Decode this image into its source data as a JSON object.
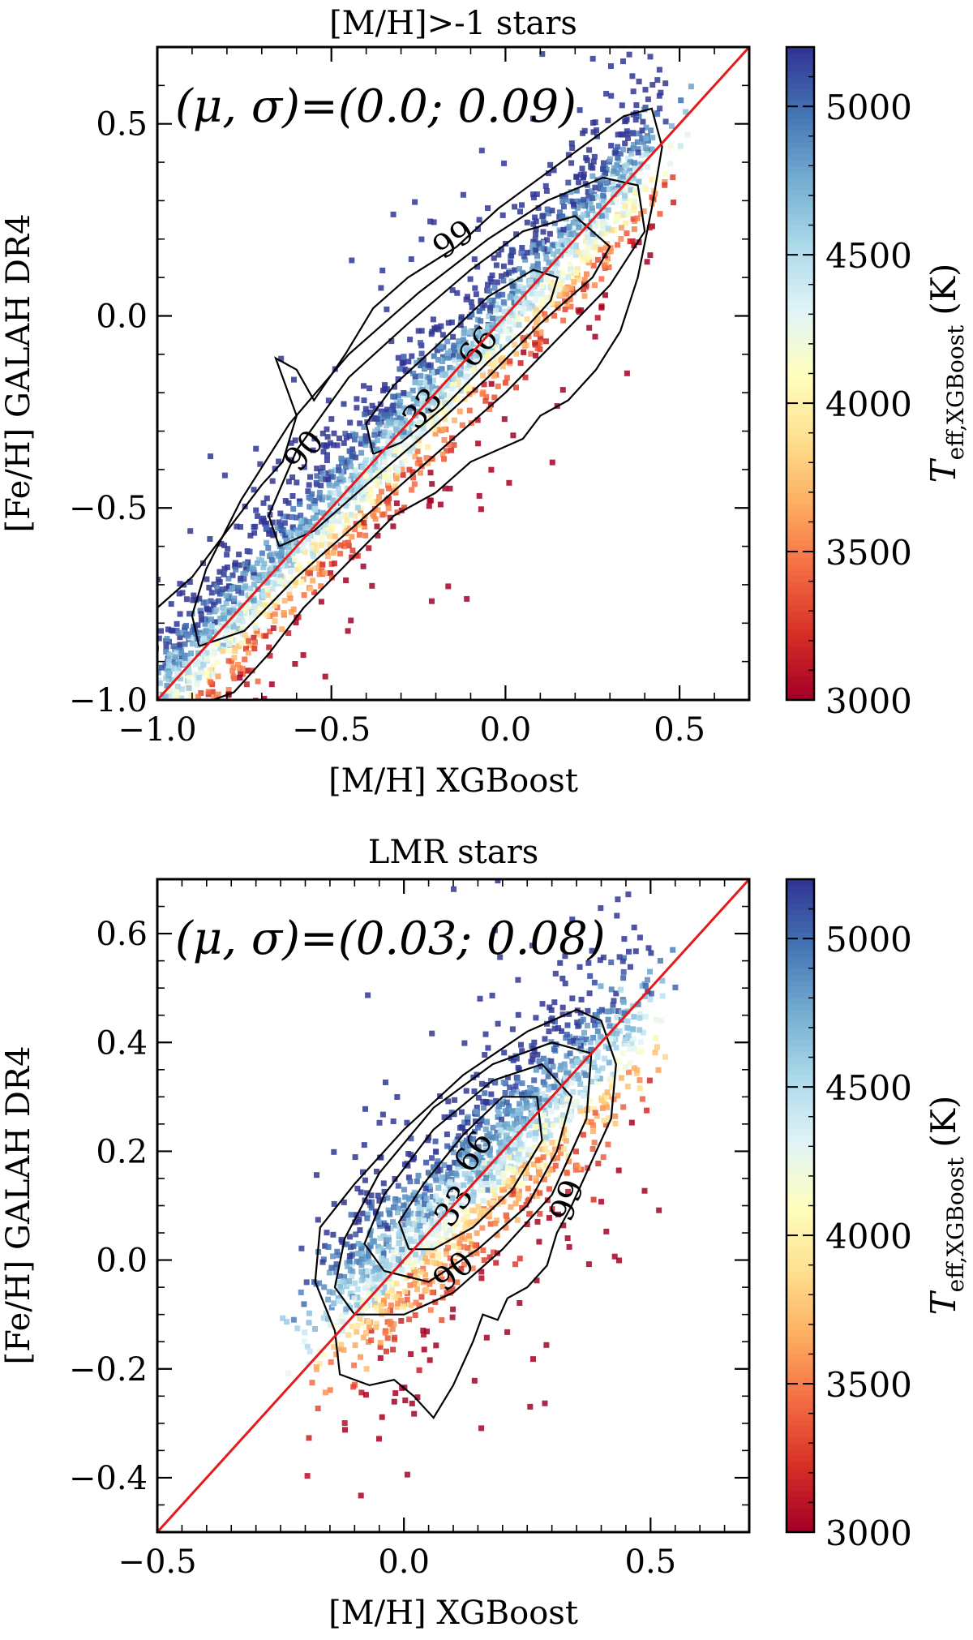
{
  "colorbar": {
    "label": "T_eff,XGBoost (K)",
    "label_main": "T",
    "label_sub": "eff,XGBoost",
    "label_unit": "(K)",
    "range": [
      3000,
      5200
    ],
    "ticks": [
      3000,
      3500,
      4000,
      4500,
      5000
    ],
    "tick_labels": [
      "3000",
      "3500",
      "4000",
      "4500",
      "5000"
    ],
    "colormap": [
      "#a50026",
      "#d73027",
      "#f46d43",
      "#fdae61",
      "#fee090",
      "#ffffbf",
      "#e0f3f8",
      "#abd9e9",
      "#74add1",
      "#4575b4",
      "#313695"
    ]
  },
  "chart_data": [
    {
      "type": "scatter",
      "title": "[M/H]>-1 stars",
      "annotation": "(μ, σ)=(0.0; 0.09)",
      "xlabel": "[M/H] XGBoost",
      "ylabel": "[Fe/H] GALAH DR4",
      "xlim": [
        -1.0,
        0.7
      ],
      "ylim": [
        -1.0,
        0.7
      ],
      "xticks": [
        -1.0,
        -0.5,
        0.0,
        0.5
      ],
      "xtick_labels": [
        "−1.0",
        "−0.5",
        "0.0",
        "0.5"
      ],
      "yticks": [
        -1.0,
        -0.5,
        0.0,
        0.5
      ],
      "ytick_labels": [
        "−1.0",
        "−0.5",
        "0.0",
        "0.5"
      ],
      "identity_line": {
        "color": "#e41a1c",
        "from": [
          -1.0,
          -1.0
        ],
        "to": [
          0.7,
          0.7
        ]
      },
      "density": {
        "slope": 1.0,
        "intercept": 0.0,
        "center": [
          -0.3,
          -0.3
        ],
        "half_length": 0.72,
        "spread": 0.09,
        "n_points": 2600,
        "cool_offset": -0.2
      },
      "contour_levels": [
        33,
        66,
        90,
        99
      ],
      "contours": [
        {
          "level": "33",
          "color": "#000000",
          "points": [
            [
              -0.38,
              -0.36
            ],
            [
              -0.3,
              -0.33
            ],
            [
              -0.18,
              -0.24
            ],
            [
              -0.05,
              -0.12
            ],
            [
              0.05,
              -0.04
            ],
            [
              0.13,
              0.04
            ],
            [
              0.15,
              0.1
            ],
            [
              0.08,
              0.12
            ],
            [
              -0.05,
              0.05
            ],
            [
              -0.2,
              -0.08
            ],
            [
              -0.32,
              -0.18
            ],
            [
              -0.4,
              -0.28
            ],
            [
              -0.38,
              -0.36
            ]
          ],
          "label_pos": [
            -0.24,
            -0.24
          ],
          "label_rot": -50
        },
        {
          "level": "66",
          "color": "#000000",
          "points": [
            [
              -0.65,
              -0.6
            ],
            [
              -0.55,
              -0.56
            ],
            [
              -0.4,
              -0.44
            ],
            [
              -0.22,
              -0.3
            ],
            [
              -0.05,
              -0.16
            ],
            [
              0.1,
              -0.02
            ],
            [
              0.25,
              0.1
            ],
            [
              0.3,
              0.18
            ],
            [
              0.2,
              0.26
            ],
            [
              0.05,
              0.22
            ],
            [
              -0.1,
              0.12
            ],
            [
              -0.28,
              -0.02
            ],
            [
              -0.45,
              -0.16
            ],
            [
              -0.6,
              -0.35
            ],
            [
              -0.68,
              -0.52
            ],
            [
              -0.65,
              -0.6
            ]
          ],
          "label_pos": [
            -0.08,
            -0.08
          ],
          "label_rot": -50
        },
        {
          "level": "90",
          "color": "#000000",
          "points": [
            [
              -0.88,
              -0.86
            ],
            [
              -0.75,
              -0.82
            ],
            [
              -0.6,
              -0.68
            ],
            [
              -0.4,
              -0.52
            ],
            [
              -0.2,
              -0.36
            ],
            [
              0.0,
              -0.2
            ],
            [
              0.15,
              -0.06
            ],
            [
              0.3,
              0.08
            ],
            [
              0.4,
              0.22
            ],
            [
              0.38,
              0.34
            ],
            [
              0.28,
              0.36
            ],
            [
              0.12,
              0.3
            ],
            [
              -0.05,
              0.2
            ],
            [
              -0.25,
              0.06
            ],
            [
              -0.45,
              -0.1
            ],
            [
              -0.62,
              -0.28
            ],
            [
              -0.76,
              -0.48
            ],
            [
              -0.86,
              -0.66
            ],
            [
              -0.9,
              -0.78
            ],
            [
              -0.88,
              -0.86
            ]
          ],
          "label_pos": [
            -0.58,
            -0.35
          ],
          "label_rot": -50
        },
        {
          "level": "99",
          "color": "#000000",
          "points": [
            [
              -1.0,
              -0.76
            ],
            [
              -0.9,
              -0.68
            ],
            [
              -0.8,
              -0.56
            ],
            [
              -0.7,
              -0.44
            ],
            [
              -0.64,
              -0.38
            ],
            [
              -0.6,
              -0.26
            ],
            [
              -0.66,
              -0.11
            ],
            [
              -0.6,
              -0.14
            ],
            [
              -0.55,
              -0.22
            ],
            [
              -0.46,
              -0.1
            ],
            [
              -0.38,
              0.02
            ],
            [
              -0.28,
              0.1
            ],
            [
              -0.14,
              0.18
            ],
            [
              -0.02,
              0.28
            ],
            [
              0.1,
              0.36
            ],
            [
              0.22,
              0.44
            ],
            [
              0.34,
              0.52
            ],
            [
              0.42,
              0.54
            ],
            [
              0.45,
              0.44
            ],
            [
              0.42,
              0.28
            ],
            [
              0.38,
              0.1
            ],
            [
              0.33,
              -0.04
            ],
            [
              0.26,
              -0.14
            ],
            [
              0.18,
              -0.22
            ],
            [
              0.1,
              -0.26
            ],
            [
              0.05,
              -0.32
            ],
            [
              -0.1,
              -0.38
            ],
            [
              -0.2,
              -0.46
            ],
            [
              -0.32,
              -0.52
            ],
            [
              -0.45,
              -0.64
            ],
            [
              -0.58,
              -0.76
            ],
            [
              -0.68,
              -0.88
            ],
            [
              -0.78,
              -0.98
            ],
            [
              -0.84,
              -1.0
            ]
          ],
          "label_pos": [
            -0.15,
            0.2
          ],
          "label_rot": -35
        }
      ]
    },
    {
      "type": "scatter",
      "title": "LMR stars",
      "annotation": "(μ, σ)=(0.03; 0.08)",
      "xlabel": "[M/H] XGBoost",
      "ylabel": "[Fe/H] GALAH DR4",
      "xlim": [
        -0.5,
        0.7
      ],
      "ylim": [
        -0.5,
        0.7
      ],
      "xticks": [
        -0.5,
        0.0,
        0.5
      ],
      "xtick_labels": [
        "−0.5",
        "0.0",
        "0.5"
      ],
      "yticks": [
        -0.4,
        -0.2,
        0.0,
        0.2,
        0.4,
        0.6
      ],
      "ytick_labels": [
        "−0.4",
        "−0.2",
        "0.0",
        "0.2",
        "0.4",
        "0.6"
      ],
      "identity_line": {
        "color": "#e41a1c",
        "from": [
          -0.5,
          -0.5
        ],
        "to": [
          0.7,
          0.7
        ]
      },
      "density": {
        "slope": 0.85,
        "intercept": 0.03,
        "center": [
          0.16,
          0.16
        ],
        "half_length": 0.3,
        "spread": 0.08,
        "n_points": 1700,
        "cool_offset": -0.12
      },
      "contour_levels": [
        33,
        66,
        90,
        99
      ],
      "contours": [
        {
          "level": "33",
          "color": "#000000",
          "points": [
            [
              0.01,
              0.02
            ],
            [
              0.06,
              0.02
            ],
            [
              0.14,
              0.06
            ],
            [
              0.22,
              0.13
            ],
            [
              0.28,
              0.22
            ],
            [
              0.27,
              0.3
            ],
            [
              0.2,
              0.3
            ],
            [
              0.12,
              0.23
            ],
            [
              0.04,
              0.14
            ],
            [
              -0.01,
              0.07
            ],
            [
              0.01,
              0.02
            ]
          ],
          "label_pos": [
            0.1,
            0.1
          ],
          "label_rot": -55
        },
        {
          "level": "66",
          "color": "#000000",
          "points": [
            [
              -0.04,
              -0.02
            ],
            [
              0.05,
              -0.04
            ],
            [
              0.15,
              0.02
            ],
            [
              0.25,
              0.1
            ],
            [
              0.31,
              0.2
            ],
            [
              0.34,
              0.3
            ],
            [
              0.28,
              0.36
            ],
            [
              0.18,
              0.33
            ],
            [
              0.06,
              0.24
            ],
            [
              -0.04,
              0.12
            ],
            [
              -0.08,
              0.03
            ],
            [
              -0.04,
              -0.02
            ]
          ],
          "label_pos": [
            0.14,
            0.2
          ],
          "label_rot": -55
        },
        {
          "level": "90",
          "color": "#000000",
          "points": [
            [
              -0.1,
              -0.1
            ],
            [
              0.0,
              -0.1
            ],
            [
              0.1,
              -0.06
            ],
            [
              0.2,
              0.02
            ],
            [
              0.3,
              0.12
            ],
            [
              0.37,
              0.26
            ],
            [
              0.38,
              0.38
            ],
            [
              0.3,
              0.4
            ],
            [
              0.18,
              0.36
            ],
            [
              0.06,
              0.28
            ],
            [
              -0.05,
              0.16
            ],
            [
              -0.12,
              0.04
            ],
            [
              -0.14,
              -0.05
            ],
            [
              -0.1,
              -0.1
            ]
          ],
          "label_pos": [
            0.1,
            -0.02
          ],
          "label_rot": -40
        },
        {
          "level": "99",
          "color": "#000000",
          "points": [
            [
              -0.14,
              -0.13
            ],
            [
              -0.13,
              -0.21
            ],
            [
              -0.07,
              -0.23
            ],
            [
              -0.02,
              -0.22
            ],
            [
              0.02,
              -0.25
            ],
            [
              0.06,
              -0.29
            ],
            [
              0.1,
              -0.23
            ],
            [
              0.14,
              -0.15
            ],
            [
              0.16,
              -0.1
            ],
            [
              0.19,
              -0.11
            ],
            [
              0.21,
              -0.07
            ],
            [
              0.25,
              -0.05
            ],
            [
              0.29,
              -0.01
            ],
            [
              0.31,
              0.05
            ],
            [
              0.34,
              0.1
            ],
            [
              0.38,
              0.18
            ],
            [
              0.42,
              0.26
            ],
            [
              0.43,
              0.36
            ],
            [
              0.4,
              0.44
            ],
            [
              0.35,
              0.46
            ],
            [
              0.25,
              0.42
            ],
            [
              0.12,
              0.34
            ],
            [
              0.0,
              0.24
            ],
            [
              -0.1,
              0.14
            ],
            [
              -0.17,
              0.06
            ],
            [
              -0.18,
              -0.04
            ],
            [
              -0.14,
              -0.13
            ]
          ],
          "label_pos": [
            0.33,
            0.11
          ],
          "label_rot": -70
        }
      ]
    }
  ]
}
